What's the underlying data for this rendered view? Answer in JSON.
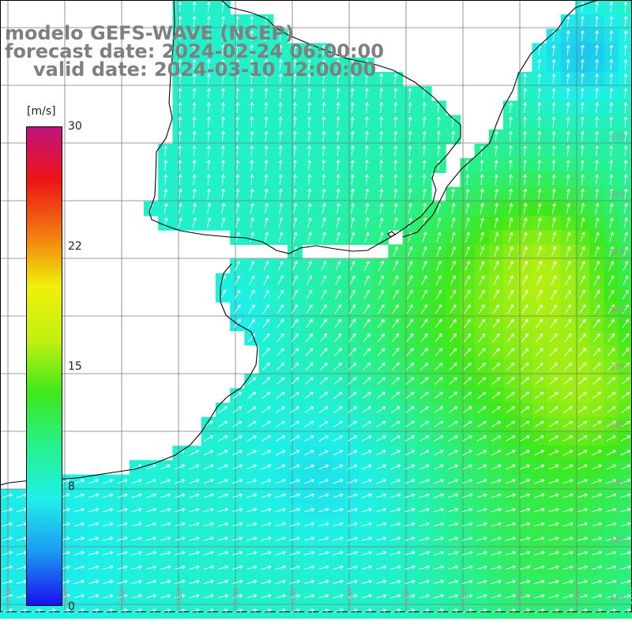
{
  "title": {
    "line1": "modelo GEFS-WAVE (NCEP)",
    "line2": "forecast date: 2024-02-24 06:00:00",
    "line3": "valid date: 2024-03-10 12:00:00"
  },
  "colorbar": {
    "unit": "[m/s]",
    "ticks": [
      "30",
      "22",
      "15",
      "8",
      "0"
    ],
    "tick_values": [
      30,
      22,
      15,
      8,
      0
    ],
    "range": [
      0,
      30
    ],
    "colors": [
      "#1a10ee",
      "#1a9af2",
      "#1ef0e8",
      "#28f08c",
      "#3ee81a",
      "#c4f010",
      "#f0f00a",
      "#f07810",
      "#ee1414",
      "#c0147e"
    ]
  },
  "map": {
    "lon_labels": [
      "61W",
      "60W",
      "59W",
      "58W",
      "57W",
      "56W",
      "55W",
      "54W",
      "53W",
      "52W",
      "51W",
      "50W"
    ],
    "lat_labels": [
      "33S",
      "34S",
      "35S",
      "36S",
      "37S",
      "38S",
      "39S",
      "40S",
      "41S"
    ],
    "gridline_color": "#7a7a7a",
    "coast_color": "#000000",
    "field": "wind speed and direction",
    "wind_direction": "from the south-west toward the north-east"
  }
}
